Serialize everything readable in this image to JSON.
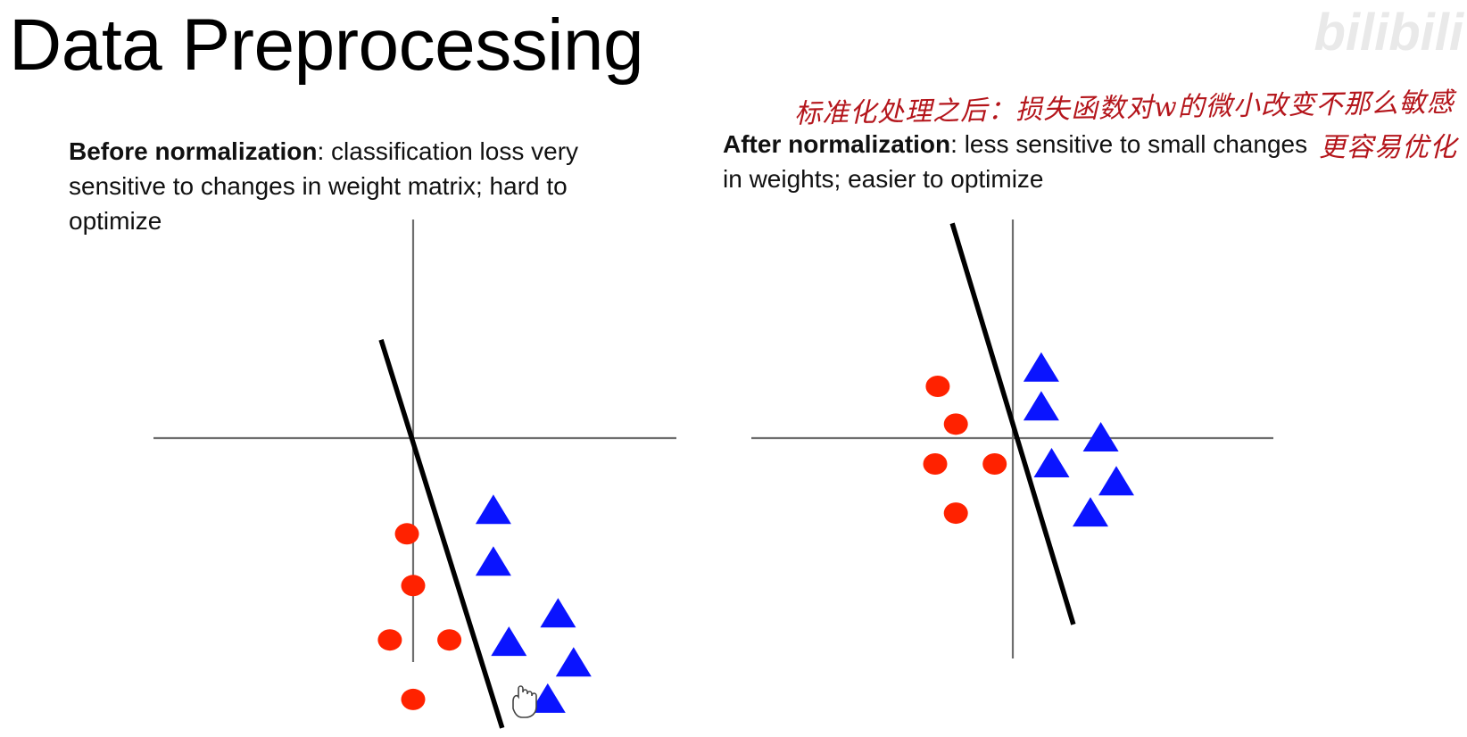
{
  "slide": {
    "title": "Data Preprocessing",
    "watermark_logo": "bilibili"
  },
  "panels": [
    {
      "id": "before",
      "caption_bold": "Before normalization",
      "caption_rest": ": classification loss very sensitive to changes in weight matrix; hard to optimize",
      "circles": [
        [
          -0.12,
          -1.85
        ],
        [
          0.0,
          -2.85
        ],
        [
          -0.45,
          -3.9
        ],
        [
          0.7,
          -3.9
        ],
        [
          0.0,
          -5.05
        ]
      ],
      "triangles": [
        [
          1.55,
          -1.4
        ],
        [
          1.55,
          -2.4
        ],
        [
          1.85,
          -3.95
        ],
        [
          2.8,
          -3.4
        ],
        [
          3.1,
          -4.35
        ],
        [
          2.6,
          -5.05
        ]
      ],
      "boundary": [
        [
          -0.62,
          1.9
        ],
        [
          1.72,
          -5.6
        ]
      ]
    },
    {
      "id": "after",
      "caption_bold": "After normalization",
      "caption_rest": ": less sensitive to small changes in weights; easier to optimize",
      "circles": [
        [
          -1.45,
          1.0
        ],
        [
          -1.1,
          0.27
        ],
        [
          -1.5,
          -0.5
        ],
        [
          -0.35,
          -0.5
        ],
        [
          -1.1,
          -1.45
        ]
      ],
      "triangles": [
        [
          0.55,
          1.35
        ],
        [
          0.55,
          0.6
        ],
        [
          0.75,
          -0.5
        ],
        [
          1.7,
          0.0
        ],
        [
          2.0,
          -0.85
        ],
        [
          1.5,
          -1.45
        ]
      ],
      "boundary": [
        [
          -1.17,
          4.15
        ],
        [
          1.17,
          -3.6
        ]
      ]
    }
  ],
  "handwritten_notes": {
    "line1": "标准化处理之后：损失函数对w的微小改变不那么敏感",
    "line2": "更容易优化",
    "color": "#b4151b"
  },
  "colors": {
    "circle": "#ff2200",
    "triangle": "#0a14ff",
    "axis": "#6e6e6e",
    "boundary": "#000000"
  }
}
